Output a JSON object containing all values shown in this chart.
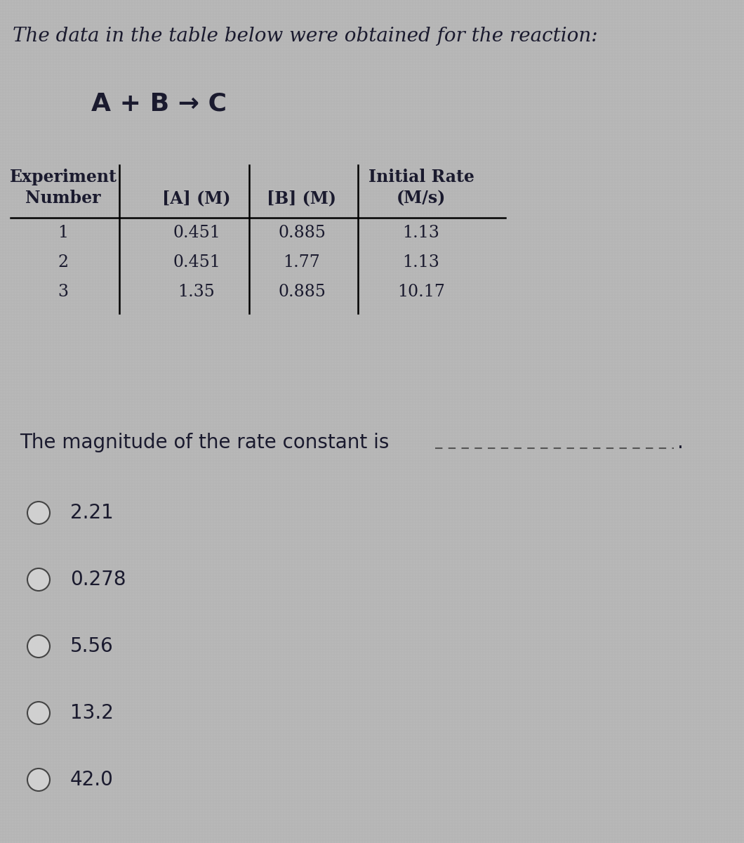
{
  "title": "The data in the table below were obtained for the reaction:",
  "reaction": "A + B → C",
  "table_headers_line1_left": "Experiment",
  "table_headers_line1_right": "Initial Rate",
  "table_headers_line2": [
    "Number",
    "[A] (M)",
    "[B] (M)",
    "(M/s)"
  ],
  "table_data": [
    [
      "1",
      "0.451",
      "0.885",
      "1.13"
    ],
    [
      "2",
      "0.451",
      "1.77",
      "1.13"
    ],
    [
      "3",
      "1.35",
      "0.885",
      "10.17"
    ]
  ],
  "question": "The magnitude of the rate constant is",
  "choices": [
    "2.21",
    "0.278",
    "5.56",
    "13.2",
    "42.0"
  ],
  "bg_color": "#b8b8b8",
  "text_color": "#1a1a2e",
  "title_font_size": 20,
  "reaction_font_size": 26,
  "table_font_size": 17,
  "question_font_size": 20,
  "choice_font_size": 20
}
